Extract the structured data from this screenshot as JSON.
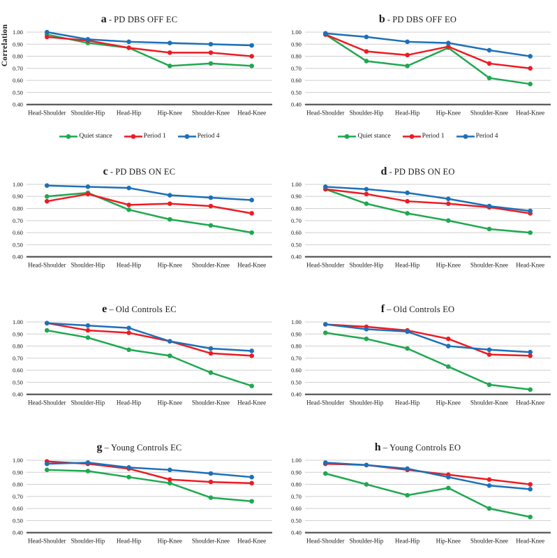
{
  "figure": {
    "ylabel": "Correlation",
    "categories": [
      "Head-Shoulder",
      "Shoulder-Hip",
      "Head-Hip",
      "Hip-Knee",
      "Shoulder-Knee",
      "Head-Knee"
    ],
    "ytick_labels": [
      "1.00",
      "0.90",
      "0.80",
      "0.70",
      "0.60",
      "0.50",
      "0.40"
    ],
    "ylim": [
      0.4,
      1.0
    ],
    "grid": "on",
    "legend_position": "below-top-row",
    "colors": {
      "quiet_stance": "#1fa84f",
      "period_1": "#ec1c24",
      "period_4": "#1c70b8",
      "gridline": "#cfcfcf",
      "axis_line": "#4d4d4d",
      "text": "#1a1a1a"
    }
  },
  "legend": {
    "items": [
      {
        "label": "Quiet stance",
        "color": "#1fa84f"
      },
      {
        "label": "Period 1",
        "color": "#ec1c24"
      },
      {
        "label": "Period 4",
        "color": "#1c70b8"
      }
    ]
  },
  "chart_data": [
    {
      "id": "a",
      "type": "line",
      "letter": "a",
      "separator": "-",
      "title": "PD DBS OFF EC",
      "show_legend": true,
      "show_ylabel": true,
      "ylim": [
        0.4,
        1.0
      ],
      "categories": [
        "Head-Shoulder",
        "Shoulder-Hip",
        "Head-Hip",
        "Hip-Knee",
        "Shoulder-Knee",
        "Head-Knee"
      ],
      "series": [
        {
          "name": "Quiet stance",
          "color": "#1fa84f",
          "values": [
            0.98,
            0.91,
            0.87,
            0.72,
            0.74,
            0.72
          ]
        },
        {
          "name": "Period 1",
          "color": "#ec1c24",
          "values": [
            0.96,
            0.93,
            0.87,
            0.83,
            0.83,
            0.8
          ]
        },
        {
          "name": "Period 4",
          "color": "#1c70b8",
          "values": [
            1.0,
            0.94,
            0.92,
            0.91,
            0.9,
            0.89
          ]
        }
      ]
    },
    {
      "id": "b",
      "type": "line",
      "letter": "b",
      "separator": "-",
      "title": "PD DBS OFF EO",
      "show_legend": true,
      "show_ylabel": false,
      "ylim": [
        0.4,
        1.0
      ],
      "categories": [
        "Head-Shoulder",
        "Shoulder-Hip",
        "Head-Hip",
        "Hip-Knee",
        "Shoulder-Knee",
        "Head-Knee"
      ],
      "series": [
        {
          "name": "Quiet stance",
          "color": "#1fa84f",
          "values": [
            0.98,
            0.76,
            0.72,
            0.87,
            0.62,
            0.57
          ]
        },
        {
          "name": "Period 1",
          "color": "#ec1c24",
          "values": [
            0.98,
            0.84,
            0.81,
            0.88,
            0.74,
            0.7
          ]
        },
        {
          "name": "Period 4",
          "color": "#1c70b8",
          "values": [
            0.99,
            0.96,
            0.92,
            0.91,
            0.85,
            0.8
          ]
        }
      ]
    },
    {
      "id": "c",
      "type": "line",
      "letter": "c",
      "separator": "-",
      "title": " PD DBS ON EC",
      "show_legend": false,
      "show_ylabel": false,
      "ylim": [
        0.4,
        1.0
      ],
      "categories": [
        "Head-Shoulder",
        "Shoulder-Hip",
        "Head-Hip",
        "Hip-Knee",
        "Shoulder-Knee",
        "Head-Knee"
      ],
      "series": [
        {
          "name": "Quiet stance",
          "color": "#1fa84f",
          "values": [
            0.9,
            0.93,
            0.79,
            0.71,
            0.66,
            0.6
          ]
        },
        {
          "name": "Period 1",
          "color": "#ec1c24",
          "values": [
            0.86,
            0.92,
            0.83,
            0.84,
            0.82,
            0.76
          ]
        },
        {
          "name": "Period 4",
          "color": "#1c70b8",
          "values": [
            0.99,
            0.98,
            0.97,
            0.91,
            0.89,
            0.87
          ]
        }
      ]
    },
    {
      "id": "d",
      "type": "line",
      "letter": "d",
      "separator": "-",
      "title": "PD DBS ON EO",
      "show_legend": false,
      "show_ylabel": false,
      "ylim": [
        0.4,
        1.0
      ],
      "categories": [
        "Head-Shoulder",
        "Shoulder-Hip",
        "Head-Hip",
        "Hip-Knee",
        "Shoulder-Knee",
        "Head-Knee"
      ],
      "series": [
        {
          "name": "Quiet stance",
          "color": "#1fa84f",
          "values": [
            0.96,
            0.84,
            0.76,
            0.7,
            0.63,
            0.6
          ]
        },
        {
          "name": "Period 1",
          "color": "#ec1c24",
          "values": [
            0.96,
            0.92,
            0.86,
            0.84,
            0.81,
            0.76
          ]
        },
        {
          "name": "Period 4",
          "color": "#1c70b8",
          "values": [
            0.98,
            0.96,
            0.93,
            0.88,
            0.82,
            0.78
          ]
        }
      ]
    },
    {
      "id": "e",
      "type": "line",
      "letter": "e",
      "separator": "–",
      "title": "Old Controls EC",
      "show_legend": false,
      "show_ylabel": false,
      "ylim": [
        0.4,
        1.0
      ],
      "categories": [
        "Head-Shoulder",
        "Shoulder-Hip",
        "Head-Hip",
        "Hip-Knee",
        "Shoulder-Knee",
        "Head-Knee"
      ],
      "series": [
        {
          "name": "Quiet stance",
          "color": "#1fa84f",
          "values": [
            0.93,
            0.87,
            0.77,
            0.72,
            0.58,
            0.47
          ]
        },
        {
          "name": "Period 1",
          "color": "#ec1c24",
          "values": [
            0.99,
            0.93,
            0.91,
            0.84,
            0.74,
            0.72
          ]
        },
        {
          "name": "Period 4",
          "color": "#1c70b8",
          "values": [
            0.99,
            0.97,
            0.95,
            0.84,
            0.78,
            0.76
          ]
        }
      ]
    },
    {
      "id": "f",
      "type": "line",
      "letter": "f",
      "separator": "–",
      "title": "Old Controls EO",
      "show_legend": false,
      "show_ylabel": false,
      "ylim": [
        0.4,
        1.0
      ],
      "categories": [
        "Head-Shoulder",
        "Shoulder-Hip",
        "Head-Hip",
        "Hip-Knee",
        "Shoulder-Knee",
        "Head-Knee"
      ],
      "series": [
        {
          "name": "Quiet stance",
          "color": "#1fa84f",
          "values": [
            0.91,
            0.86,
            0.78,
            0.63,
            0.48,
            0.44
          ]
        },
        {
          "name": "Period 1",
          "color": "#ec1c24",
          "values": [
            0.98,
            0.96,
            0.93,
            0.86,
            0.73,
            0.72
          ]
        },
        {
          "name": "Period 4",
          "color": "#1c70b8",
          "values": [
            0.98,
            0.94,
            0.92,
            0.8,
            0.77,
            0.75
          ]
        }
      ]
    },
    {
      "id": "g",
      "type": "line",
      "letter": "g",
      "separator": "–",
      "title": "Young Controls EC",
      "show_legend": false,
      "show_ylabel": false,
      "ylim": [
        0.4,
        1.0
      ],
      "categories": [
        "Head-Shoulder",
        "Shoulder-Hip",
        "Head-Hip",
        "Hip-Knee",
        "Shoulder-Knee",
        "Head-Knee"
      ],
      "series": [
        {
          "name": "Quiet stance",
          "color": "#1fa84f",
          "values": [
            0.92,
            0.91,
            0.86,
            0.81,
            0.69,
            0.66
          ]
        },
        {
          "name": "Period 1",
          "color": "#ec1c24",
          "values": [
            0.99,
            0.97,
            0.93,
            0.84,
            0.82,
            0.81
          ]
        },
        {
          "name": "Period 4",
          "color": "#1c70b8",
          "values": [
            0.97,
            0.98,
            0.94,
            0.92,
            0.89,
            0.86
          ]
        }
      ]
    },
    {
      "id": "h",
      "type": "line",
      "letter": "h",
      "separator": "–",
      "title": "Young Controls EO",
      "show_legend": false,
      "show_ylabel": false,
      "ylim": [
        0.4,
        1.0
      ],
      "categories": [
        "Head-Shoulder",
        "Shoulder-Hip",
        "Head-Hip",
        "Hip-Knee",
        "Shoulder-Knee",
        "Head-Knee"
      ],
      "series": [
        {
          "name": "Quiet stance",
          "color": "#1fa84f",
          "values": [
            0.89,
            0.8,
            0.71,
            0.77,
            0.6,
            0.53
          ]
        },
        {
          "name": "Period 1",
          "color": "#ec1c24",
          "values": [
            0.97,
            0.96,
            0.92,
            0.88,
            0.84,
            0.8
          ]
        },
        {
          "name": "Period 4",
          "color": "#1c70b8",
          "values": [
            0.98,
            0.96,
            0.93,
            0.86,
            0.79,
            0.76
          ]
        }
      ]
    }
  ]
}
